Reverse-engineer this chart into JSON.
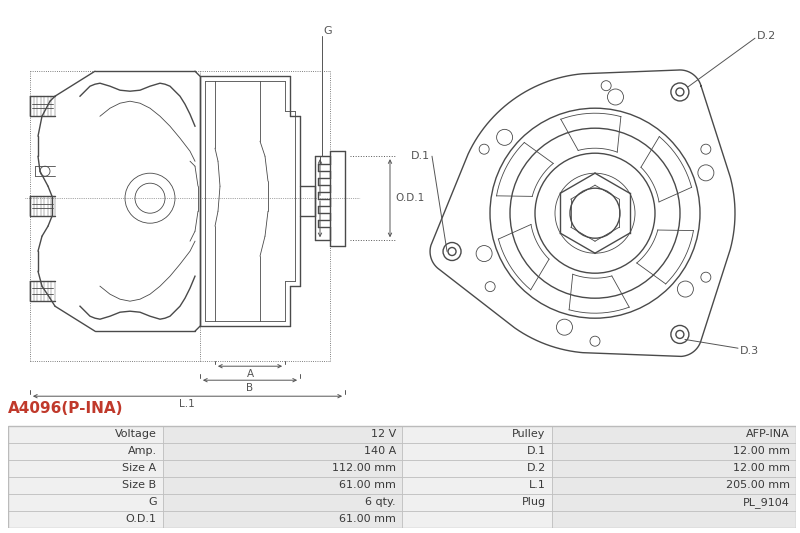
{
  "title": "A4096(P-INA)",
  "title_color": "#c0392b",
  "bg_color": "#ffffff",
  "table_rows": [
    [
      "Voltage",
      "12 V",
      "Pulley",
      "AFP-INA"
    ],
    [
      "Amp.",
      "140 A",
      "D.1",
      "12.00 mm"
    ],
    [
      "Size A",
      "112.00 mm",
      "D.2",
      "12.00 mm"
    ],
    [
      "Size B",
      "61.00 mm",
      "L.1",
      "205.00 mm"
    ],
    [
      "G",
      "6 qty.",
      "Plug",
      "PL_9104"
    ],
    [
      "O.D.1",
      "61.00 mm",
      "",
      ""
    ]
  ],
  "table_row_bg_odd": "#f0f0f0",
  "table_row_bg_even": "#e8e8e8",
  "table_border_color": "#bbbbbb",
  "line_color": "#4a4a4a",
  "label_color": "#4a4a4a",
  "dim_line_color": "#555555"
}
